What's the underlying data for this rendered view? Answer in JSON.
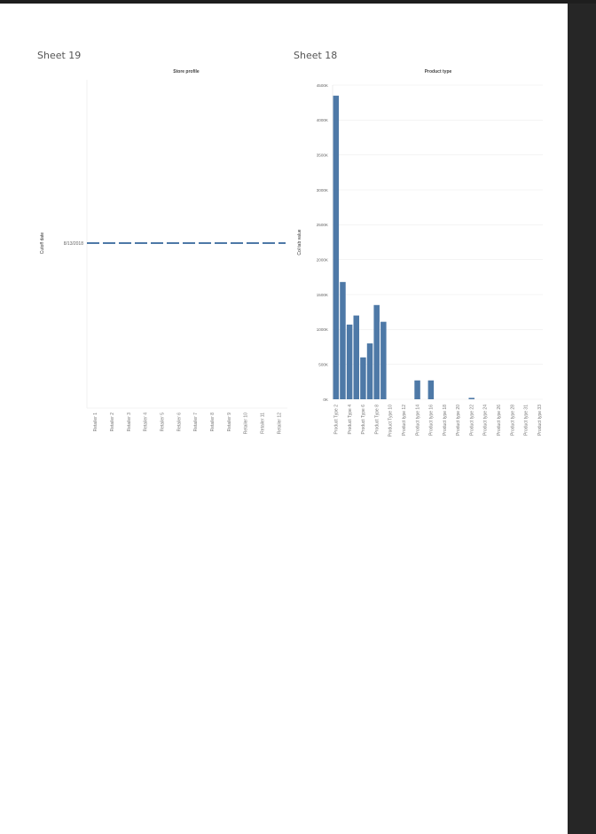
{
  "window": {
    "background": "#262626",
    "page_background": "#ffffff"
  },
  "sheets": [
    {
      "title": "Sheet 19",
      "chart_data": {
        "type": "line",
        "title": "Store profile",
        "xlabel": "",
        "ylabel": "Cutoff date",
        "categories": [
          "Retailer 1",
          "Retailer 2",
          "Retailer 3",
          "Retailer 4",
          "Retailer 5",
          "Retailer 6",
          "Retailer 7",
          "Retailer 8",
          "Retailer 9",
          "Retailer 10",
          "Retailer 11",
          "Retailer 12"
        ],
        "y_tick_labels": [
          "8/13/2018"
        ],
        "series": [
          {
            "values": [
              "8/13/2018",
              "8/13/2018",
              "8/13/2018",
              "8/13/2018",
              "8/13/2018",
              "8/13/2018",
              "8/13/2018",
              "8/13/2018",
              "8/13/2018",
              "8/13/2018",
              "8/13/2018",
              "8/13/2018"
            ],
            "color": "#4e79a7"
          }
        ],
        "line_style": "dashed",
        "grid": false
      }
    },
    {
      "title": "Sheet 18",
      "chart_data": {
        "type": "bar",
        "title": "Product type",
        "xlabel": "",
        "ylabel": "Col tab value",
        "categories": [
          "Product Type 2",
          "Product Type 4",
          "Product Type 6",
          "Product Type 8",
          "Product Type 10",
          "Product type 12",
          "Product type 14",
          "Product type 16",
          "Product type 18",
          "Product type 20",
          "Product type 22",
          "Product type 24",
          "Product type 26",
          "Product type 28",
          "Product type 31",
          "Product type 33"
        ],
        "bar_order": [
          {
            "slot": 0,
            "value": 4350
          },
          {
            "slot": 1,
            "value": 1680
          },
          {
            "slot": 2,
            "value": 1070
          },
          {
            "slot": 3,
            "value": 1200
          },
          {
            "slot": 4,
            "value": 600
          },
          {
            "slot": 5,
            "value": 800
          },
          {
            "slot": 6,
            "value": 1350
          },
          {
            "slot": 7,
            "value": 1110
          },
          {
            "slot": 12,
            "value": 270
          },
          {
            "slot": 14,
            "value": 270
          },
          {
            "slot": 20,
            "value": 20
          }
        ],
        "slots": 31,
        "ylim": [
          0,
          4500
        ],
        "y_ticks": [
          0,
          500,
          1000,
          1500,
          2000,
          2500,
          3000,
          3500,
          4000,
          4500
        ],
        "y_tick_labels": [
          "0K",
          "500K",
          "1000K",
          "1500K",
          "2000K",
          "2500K",
          "3000K",
          "3500K",
          "4000K",
          "4500K"
        ],
        "color": "#4e79a7",
        "grid": true
      }
    }
  ]
}
